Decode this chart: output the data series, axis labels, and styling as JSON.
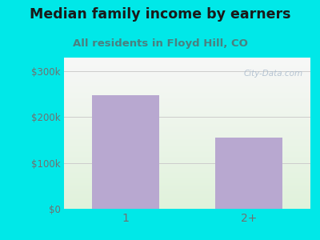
{
  "title": "Median family income by earners",
  "subtitle": "All residents in Floyd Hill, CO",
  "categories": [
    "1",
    "2+"
  ],
  "values": [
    248000,
    155000
  ],
  "bar_color": "#b8a8d0",
  "background_color": "#00e8e8",
  "title_color": "#1a1a1a",
  "subtitle_color": "#4a8080",
  "tick_label_color": "#707070",
  "grid_color": "#cccccc",
  "ylim": [
    0,
    330000
  ],
  "yticks": [
    0,
    100000,
    200000,
    300000
  ],
  "ytick_labels": [
    "$0",
    "$100k",
    "$200k",
    "$300k"
  ],
  "title_fontsize": 12.5,
  "subtitle_fontsize": 9.5,
  "watermark": "City-Data.com"
}
